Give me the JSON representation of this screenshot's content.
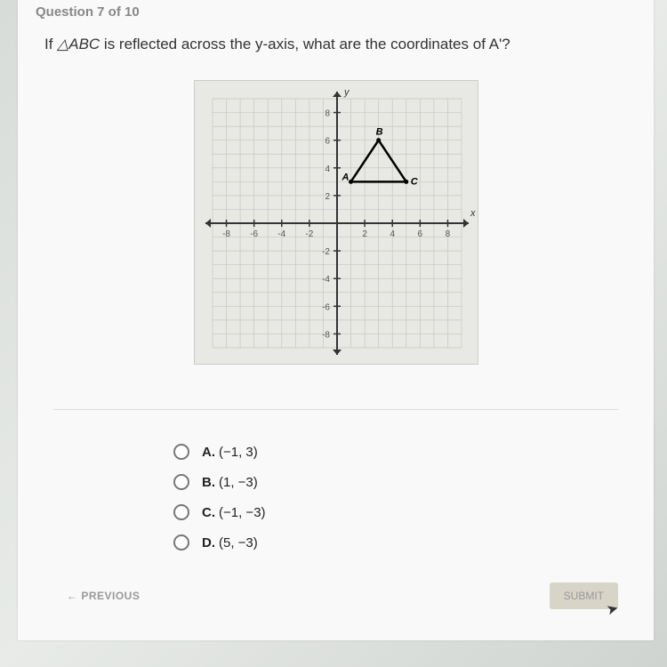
{
  "header": {
    "progress": "Question 7 of 10"
  },
  "question": {
    "prefix": "If ",
    "triangle": "△ABC",
    "suffix": " is reflected across the y-axis, what are the coordinates of A'?"
  },
  "chart": {
    "type": "coordinate-grid",
    "x_range": [
      -9,
      9
    ],
    "y_range": [
      -9,
      9
    ],
    "x_ticks": [
      -8,
      -6,
      -4,
      -2,
      2,
      4,
      6,
      8
    ],
    "y_ticks": [
      -8,
      -6,
      -4,
      -2,
      2,
      4,
      6,
      8
    ],
    "x_label": "x",
    "y_label": "y",
    "grid_color": "#c8c8c0",
    "axis_color": "#333333",
    "background_color": "#e8e8e4",
    "tick_font_size": 10,
    "triangle": {
      "vertices": {
        "A": [
          1,
          3
        ],
        "B": [
          3,
          6
        ],
        "C": [
          5,
          3
        ]
      },
      "line_color": "#000000",
      "line_width": 2.5,
      "label_color": "#000000",
      "label_font_size": 11,
      "label_font_weight": "bold",
      "label_font_style": "italic"
    }
  },
  "options": [
    {
      "letter": "A.",
      "value": "(−1, 3)"
    },
    {
      "letter": "B.",
      "value": "(1, −3)"
    },
    {
      "letter": "C.",
      "value": "(−1, −3)"
    },
    {
      "letter": "D.",
      "value": "(5, −3)"
    }
  ],
  "footer": {
    "previous": "← PREVIOUS",
    "submit": "SUBMIT"
  }
}
